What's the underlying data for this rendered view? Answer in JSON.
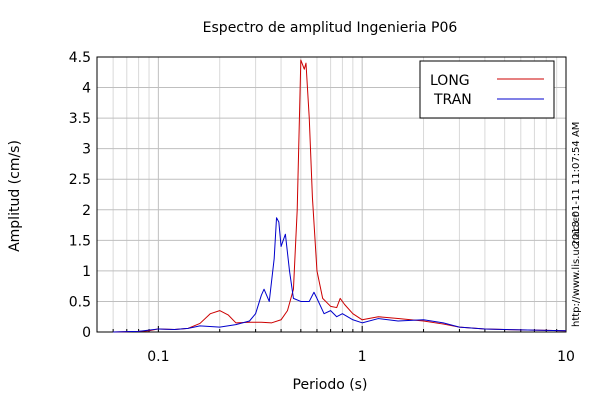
{
  "chart_data": {
    "type": "line",
    "title": "Espectro de amplitud Ingenieria P06",
    "xlabel": "Periodo (s)",
    "ylabel": "Amplitud (cm/s)",
    "xscale": "log",
    "xlim": [
      0.05,
      10
    ],
    "ylim": [
      0,
      4.5
    ],
    "x_ticks": [
      0.1,
      1,
      10
    ],
    "x_tick_labels": [
      "0.1",
      "1",
      "10"
    ],
    "y_ticks": [
      0,
      0.5,
      1,
      1.5,
      2,
      2.5,
      3,
      3.5,
      4,
      4.5
    ],
    "y_tick_labels": [
      "0",
      "0.5",
      "1",
      "1.5",
      "2",
      "2.5",
      "3",
      "3.5",
      "4",
      "4.5"
    ],
    "grid": true,
    "legend_position": "top-right",
    "series": [
      {
        "name": "LONG",
        "color": "#cc0000",
        "points": [
          [
            0.06,
            0.0
          ],
          [
            0.08,
            0.01
          ],
          [
            0.09,
            0.02
          ],
          [
            0.1,
            0.05
          ],
          [
            0.12,
            0.04
          ],
          [
            0.14,
            0.06
          ],
          [
            0.16,
            0.14
          ],
          [
            0.18,
            0.3
          ],
          [
            0.2,
            0.35
          ],
          [
            0.22,
            0.28
          ],
          [
            0.24,
            0.15
          ],
          [
            0.28,
            0.16
          ],
          [
            0.32,
            0.16
          ],
          [
            0.36,
            0.15
          ],
          [
            0.4,
            0.2
          ],
          [
            0.43,
            0.35
          ],
          [
            0.46,
            0.7
          ],
          [
            0.48,
            2.0
          ],
          [
            0.5,
            4.45
          ],
          [
            0.52,
            4.3
          ],
          [
            0.53,
            4.4
          ],
          [
            0.55,
            3.5
          ],
          [
            0.57,
            2.2
          ],
          [
            0.6,
            1.0
          ],
          [
            0.64,
            0.55
          ],
          [
            0.7,
            0.42
          ],
          [
            0.75,
            0.4
          ],
          [
            0.78,
            0.55
          ],
          [
            0.82,
            0.45
          ],
          [
            0.9,
            0.3
          ],
          [
            1.0,
            0.2
          ],
          [
            1.2,
            0.25
          ],
          [
            1.5,
            0.22
          ],
          [
            2.0,
            0.18
          ],
          [
            2.5,
            0.13
          ],
          [
            3.0,
            0.08
          ],
          [
            4.0,
            0.05
          ],
          [
            5.0,
            0.04
          ],
          [
            7.0,
            0.03
          ],
          [
            10.0,
            0.02
          ]
        ]
      },
      {
        "name": "TRAN",
        "color": "#0000cc",
        "points": [
          [
            0.06,
            0.0
          ],
          [
            0.08,
            0.01
          ],
          [
            0.1,
            0.05
          ],
          [
            0.12,
            0.04
          ],
          [
            0.14,
            0.06
          ],
          [
            0.16,
            0.1
          ],
          [
            0.2,
            0.08
          ],
          [
            0.24,
            0.12
          ],
          [
            0.28,
            0.18
          ],
          [
            0.3,
            0.3
          ],
          [
            0.32,
            0.6
          ],
          [
            0.33,
            0.7
          ],
          [
            0.35,
            0.5
          ],
          [
            0.37,
            1.2
          ],
          [
            0.38,
            1.87
          ],
          [
            0.39,
            1.8
          ],
          [
            0.4,
            1.4
          ],
          [
            0.42,
            1.6
          ],
          [
            0.44,
            1.0
          ],
          [
            0.46,
            0.55
          ],
          [
            0.5,
            0.5
          ],
          [
            0.55,
            0.5
          ],
          [
            0.58,
            0.65
          ],
          [
            0.6,
            0.55
          ],
          [
            0.65,
            0.3
          ],
          [
            0.7,
            0.35
          ],
          [
            0.75,
            0.25
          ],
          [
            0.8,
            0.3
          ],
          [
            0.9,
            0.2
          ],
          [
            1.0,
            0.15
          ],
          [
            1.2,
            0.22
          ],
          [
            1.5,
            0.18
          ],
          [
            2.0,
            0.2
          ],
          [
            2.5,
            0.15
          ],
          [
            3.0,
            0.08
          ],
          [
            4.0,
            0.05
          ],
          [
            5.0,
            0.04
          ],
          [
            7.0,
            0.03
          ],
          [
            10.0,
            0.02
          ]
        ]
      }
    ]
  },
  "side_text": {
    "timestamp": "2018-01-11 11:07:54 AM",
    "url": "http://www.lis.ucr.ac.cr"
  }
}
